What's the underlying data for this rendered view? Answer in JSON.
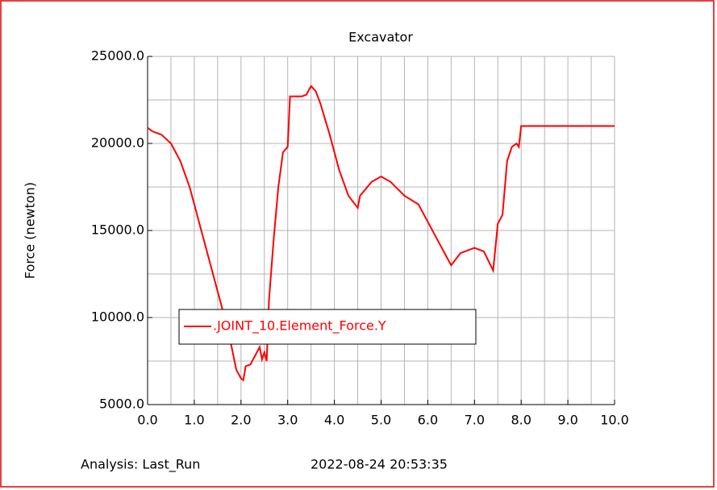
{
  "chart_data": {
    "type": "line",
    "title": "Excavator",
    "y_label": "Force (newton)",
    "x": [
      0,
      0.1,
      0.3,
      0.5,
      0.7,
      0.9,
      1.0,
      1.1,
      1.3,
      1.5,
      1.7,
      1.8,
      1.9,
      2.0,
      2.05,
      2.1,
      2.2,
      2.3,
      2.4,
      2.45,
      2.5,
      2.55,
      2.6,
      2.7,
      2.8,
      2.9,
      3.0,
      3.05,
      3.3,
      3.4,
      3.5,
      3.6,
      3.7,
      3.9,
      4.1,
      4.3,
      4.5,
      4.55,
      4.8,
      5.0,
      5.2,
      5.5,
      5.8,
      6.0,
      6.2,
      6.4,
      6.5,
      6.7,
      7.0,
      7.2,
      7.4,
      7.5,
      7.6,
      7.7,
      7.8,
      7.9,
      7.95,
      8.0,
      10.0
    ],
    "series": [
      {
        "name": ".JOINT_10.Element_Force.Y",
        "color": "#ff0000",
        "values": [
          20900,
          20700,
          20500,
          20000,
          19000,
          17500,
          16500,
          15500,
          13500,
          11500,
          9500,
          8300,
          7000,
          6500,
          6400,
          7200,
          7300,
          7800,
          8300,
          7600,
          8000,
          7500,
          11000,
          14500,
          17500,
          19500,
          19800,
          22700,
          22700,
          22800,
          23300,
          23000,
          22300,
          20500,
          18500,
          17000,
          16300,
          17000,
          17800,
          18100,
          17800,
          17000,
          16500,
          15500,
          14500,
          13500,
          13000,
          13700,
          14000,
          13800,
          12700,
          15400,
          15900,
          19000,
          19800,
          20000,
          19800,
          21000,
          21000
        ]
      }
    ],
    "xlim": [
      0,
      10
    ],
    "ylim": [
      5000,
      25000
    ],
    "xticks": [
      {
        "value": 0,
        "label": "0.0"
      },
      {
        "value": 1,
        "label": "1.0"
      },
      {
        "value": 2,
        "label": "2.0"
      },
      {
        "value": 3,
        "label": "3.0"
      },
      {
        "value": 4,
        "label": "4.0"
      },
      {
        "value": 5,
        "label": "5.0"
      },
      {
        "value": 6,
        "label": "6.0"
      },
      {
        "value": 7,
        "label": "7.0"
      },
      {
        "value": 8,
        "label": "8.0"
      },
      {
        "value": 9,
        "label": "9.0"
      },
      {
        "value": 10,
        "label": "10.0"
      }
    ],
    "yticks": [
      {
        "value": 5000,
        "label": "5000.0"
      },
      {
        "value": 10000,
        "label": "10000.0"
      },
      {
        "value": 15000,
        "label": "15000.0"
      },
      {
        "value": 20000,
        "label": "20000.0"
      },
      {
        "value": 25000,
        "label": "25000.0"
      }
    ],
    "x_minor_ticks": [
      0.5,
      1.5,
      2.5,
      3.5,
      4.5,
      5.5,
      6.5,
      7.5,
      8.5,
      9.5
    ],
    "y_minor_ticks": [
      7500,
      12500,
      17500,
      22500
    ],
    "grid": true,
    "analysis": "Analysis:  Last_Run",
    "timestamp": "2022-08-24 20:53:35"
  }
}
